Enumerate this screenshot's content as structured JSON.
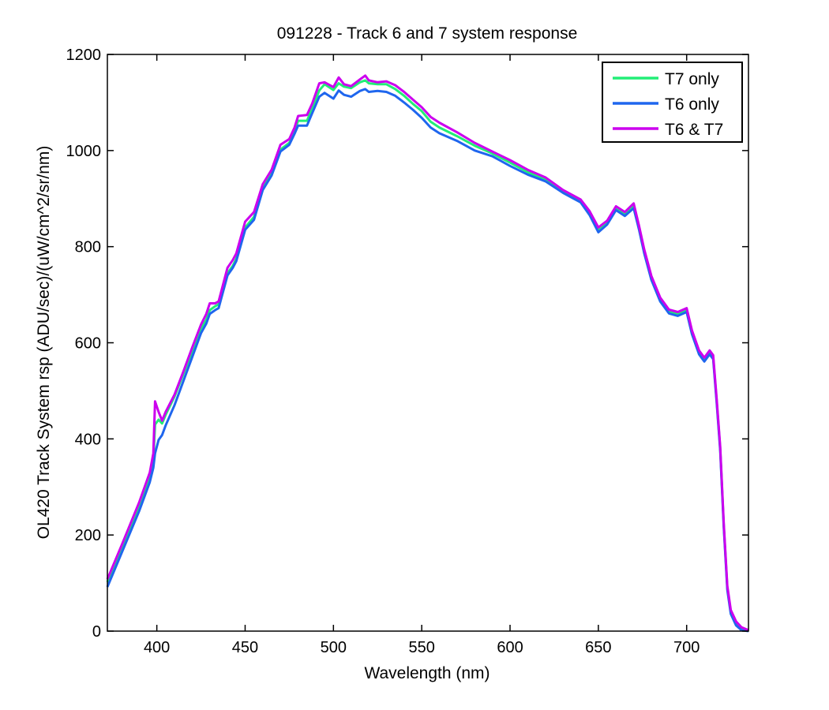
{
  "chart_data": {
    "type": "line",
    "title": "091228 - Track 6 and 7 system response",
    "xlabel": "Wavelength (nm)",
    "ylabel": "OL420 Track System rsp (ADU/sec)/(uW/cm^2/sr/nm)",
    "xlim": [
      372,
      735
    ],
    "ylim": [
      0,
      1200
    ],
    "xticks": [
      400,
      450,
      500,
      550,
      600,
      650,
      700
    ],
    "yticks": [
      0,
      200,
      400,
      600,
      800,
      1000,
      1200
    ],
    "grid": false,
    "legend": "top-right",
    "x": [
      372,
      380,
      390,
      396,
      398,
      399,
      401,
      403,
      405,
      410,
      415,
      420,
      425,
      428,
      430,
      433,
      435,
      440,
      443,
      445,
      450,
      455,
      460,
      465,
      470,
      475,
      478,
      480,
      485,
      488,
      492,
      495,
      500,
      503,
      506,
      510,
      515,
      518,
      520,
      525,
      530,
      535,
      540,
      545,
      550,
      555,
      560,
      570,
      580,
      590,
      600,
      610,
      620,
      630,
      640,
      645,
      650,
      655,
      660,
      665,
      670,
      673,
      676,
      680,
      685,
      690,
      695,
      700,
      703,
      707,
      710,
      713,
      715,
      717,
      719,
      721,
      723,
      725,
      728,
      731,
      735
    ],
    "series": [
      {
        "name": "T7 only",
        "color": "#22ee77",
        "values": [
          102,
          170,
          260,
          320,
          355,
          430,
          440,
          432,
          450,
          488,
          535,
          582,
          630,
          648,
          668,
          676,
          680,
          745,
          760,
          775,
          840,
          862,
          922,
          952,
          1002,
          1016,
          1040,
          1062,
          1062,
          1088,
          1125,
          1138,
          1126,
          1140,
          1133,
          1130,
          1142,
          1146,
          1140,
          1138,
          1138,
          1128,
          1114,
          1097,
          1082,
          1060,
          1048,
          1030,
          1010,
          994,
          975,
          955,
          940,
          915,
          895,
          870,
          835,
          850,
          880,
          868,
          885,
          840,
          790,
          735,
          690,
          665,
          660,
          668,
          622,
          580,
          565,
          580,
          570,
          480,
          380,
          220,
          90,
          40,
          16,
          6,
          0
        ]
      },
      {
        "name": "T6 only",
        "color": "#1f66ee",
        "values": [
          92,
          162,
          250,
          310,
          340,
          370,
          398,
          408,
          428,
          470,
          520,
          570,
          620,
          640,
          660,
          668,
          672,
          740,
          756,
          770,
          835,
          856,
          918,
          948,
          998,
          1012,
          1035,
          1052,
          1052,
          1078,
          1112,
          1120,
          1108,
          1125,
          1116,
          1112,
          1124,
          1128,
          1122,
          1124,
          1122,
          1114,
          1100,
          1085,
          1068,
          1048,
          1036,
          1020,
          1000,
          988,
          968,
          950,
          936,
          912,
          892,
          866,
          830,
          846,
          876,
          864,
          880,
          836,
          786,
          731,
          686,
          661,
          656,
          664,
          618,
          576,
          561,
          576,
          566,
          476,
          376,
          216,
          86,
          36,
          12,
          2,
          0
        ]
      },
      {
        "name": "T6 & T7",
        "color": "#cc00ee",
        "values": [
          108,
          178,
          268,
          330,
          370,
          478,
          456,
          438,
          456,
          492,
          540,
          590,
          638,
          660,
          682,
          682,
          686,
          756,
          772,
          786,
          852,
          872,
          930,
          960,
          1012,
          1024,
          1048,
          1072,
          1074,
          1098,
          1140,
          1142,
          1132,
          1152,
          1138,
          1134,
          1148,
          1156,
          1146,
          1142,
          1144,
          1136,
          1122,
          1106,
          1090,
          1070,
          1058,
          1038,
          1016,
          998,
          980,
          960,
          944,
          918,
          898,
          874,
          840,
          854,
          884,
          872,
          890,
          844,
          794,
          739,
          694,
          669,
          664,
          672,
          626,
          584,
          569,
          584,
          574,
          484,
          384,
          224,
          94,
          44,
          20,
          8,
          2
        ]
      }
    ]
  }
}
